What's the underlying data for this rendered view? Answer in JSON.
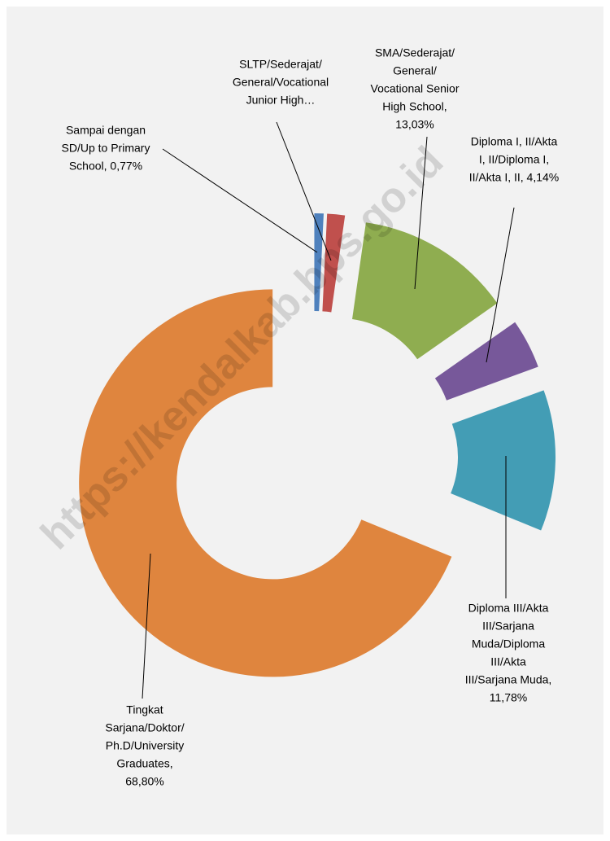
{
  "chart_data": {
    "type": "doughnut",
    "watermark": "https://kendalkab.bps.go.id",
    "data_labels": [
      [
        "Sampai dengan",
        "SD/Up to Primary",
        "School, 0,77%"
      ],
      [
        "SLTP/Sederajat/",
        "General/Vocational",
        "Junior High…"
      ],
      [
        "SMA/Sederajat/",
        "General/",
        "Vocational Senior",
        "High School,",
        "13,03%"
      ],
      [
        "Diploma I, II/Akta",
        "I, II/Diploma I,",
        "II/Akta I, II, 4,14%"
      ],
      [
        "Diploma III/Akta",
        "III/Sarjana",
        "Muda/Diploma",
        "III/Akta",
        "III/Sarjana Muda,",
        "11,78%"
      ],
      [
        "Tingkat",
        "Sarjana/Doktor/",
        "Ph.D/University",
        "Graduates,",
        "68,80%"
      ]
    ],
    "values": [
      0.77,
      1.48,
      13.03,
      4.14,
      11.78,
      68.8
    ],
    "colors": [
      "#4f81bd",
      "#c0504d",
      "#8fad50",
      "#77589a",
      "#439db5",
      "#df853e"
    ],
    "background": "#f2f2f2"
  }
}
